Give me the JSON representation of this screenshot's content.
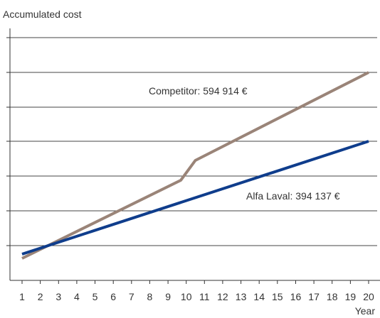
{
  "chart_data": {
    "type": "line",
    "title": "",
    "ylabel": "Accumulated cost",
    "xlabel": "Year",
    "x": [
      1,
      2,
      3,
      4,
      5,
      6,
      7,
      8,
      9,
      10,
      11,
      12,
      13,
      14,
      15,
      16,
      17,
      18,
      19,
      20
    ],
    "x_ticks": [
      "1",
      "2",
      "3",
      "4",
      "5",
      "6",
      "7",
      "8",
      "9",
      "10",
      "11",
      "12",
      "13",
      "14",
      "15",
      "16",
      "17",
      "18",
      "19",
      "20"
    ],
    "ylim": [
      0,
      700000
    ],
    "yticks_labeled": false,
    "grid": "horizontal",
    "series": [
      {
        "name": "Competitor",
        "color": "#9a8478",
        "points": [
          [
            1,
            12000
          ],
          [
            9.7,
            384000
          ],
          [
            10.5,
            438000
          ],
          [
            20,
            594914
          ]
        ],
        "annotation": "Competitor: 594 914 €"
      },
      {
        "name": "Alfa Laval",
        "color": "#0f3d8c",
        "points": [
          [
            1,
            50000
          ],
          [
            20,
            394137
          ]
        ],
        "annotation": "Alfa Laval: 394 137 €"
      }
    ]
  }
}
